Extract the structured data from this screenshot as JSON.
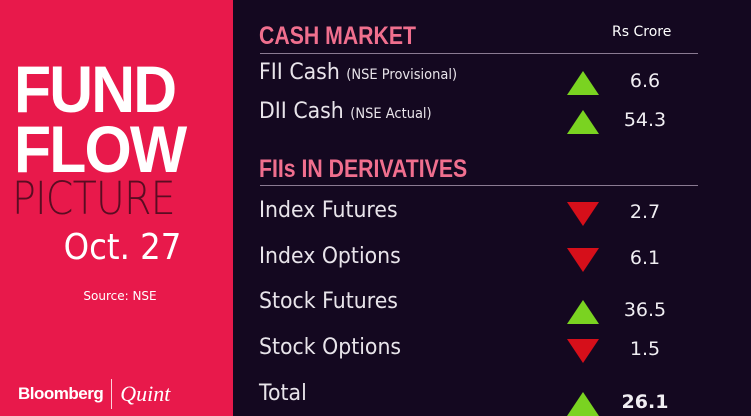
{
  "left": {
    "line1": "FUND",
    "line2": "FLOW",
    "line3": "PICTURE",
    "date": "Oct. 27",
    "source": "Source: NSE",
    "brand1": "Bloomberg",
    "brand2": "Quint"
  },
  "unit": "Rs Crore",
  "cash": {
    "heading": "CASH MARKET",
    "rows": [
      {
        "label": "FII Cash",
        "note": "(NSE Provisional)",
        "direction": "up",
        "value": "6.6"
      },
      {
        "label": "DII Cash",
        "note": "(NSE Actual)",
        "direction": "up",
        "value": "54.3"
      }
    ]
  },
  "deriv": {
    "heading": "FIIs IN DERIVATIVES",
    "rows": [
      {
        "label": "Index Futures",
        "direction": "down",
        "value": "2.7"
      },
      {
        "label": "Index Options",
        "direction": "down",
        "value": "6.1"
      },
      {
        "label": "Stock Futures",
        "direction": "up",
        "value": "36.5"
      },
      {
        "label": "Stock Options",
        "direction": "down",
        "value": "1.5"
      },
      {
        "label": "Total",
        "direction": "up",
        "value": "26.1"
      }
    ]
  },
  "colors": {
    "up": "#7ad321",
    "down": "#d60f1a",
    "panel": "#e8194b",
    "background": "#140820",
    "heading": "#f06f8e"
  }
}
